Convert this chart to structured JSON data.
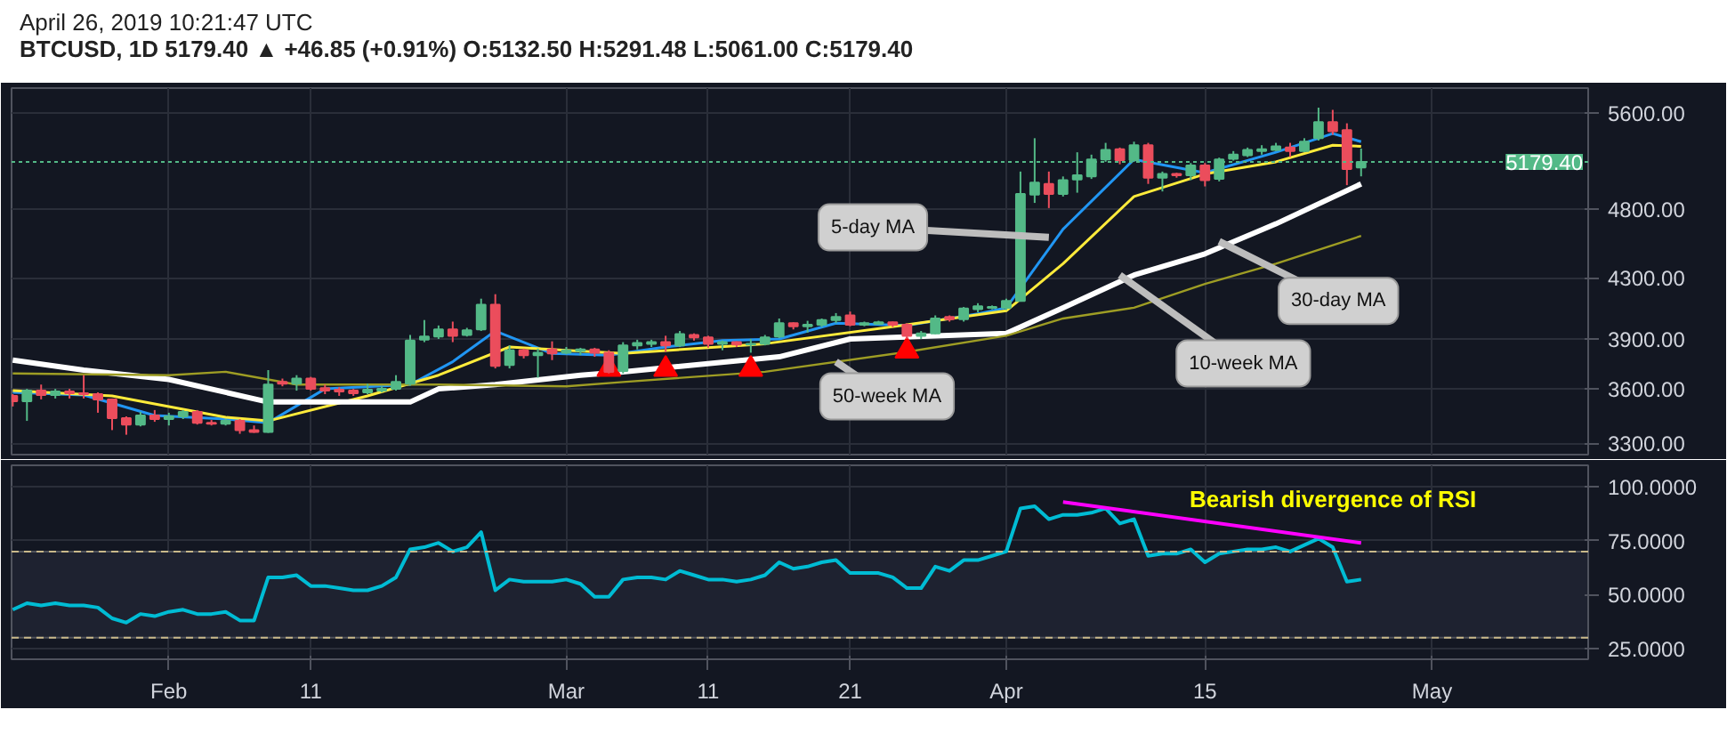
{
  "chart_data": [
    {
      "type": "candlestick",
      "title": "April 26, 2019 10:21:47 UTC",
      "subtitle": "BTCUSD, 1D 5179.40 ▲ +46.85 (+0.91%) O:5132.50 H:5291.48 L:5061.00 C:5179.40",
      "x": [
        "2019-01-21",
        "2019-01-22",
        "2019-01-23",
        "2019-01-24",
        "2019-01-25",
        "2019-01-26",
        "2019-01-27",
        "2019-01-28",
        "2019-01-29",
        "2019-01-30",
        "2019-01-31",
        "2019-02-01",
        "2019-02-02",
        "2019-02-03",
        "2019-02-04",
        "2019-02-05",
        "2019-02-06",
        "2019-02-07",
        "2019-02-08",
        "2019-02-09",
        "2019-02-10",
        "2019-02-11",
        "2019-02-12",
        "2019-02-13",
        "2019-02-14",
        "2019-02-15",
        "2019-02-16",
        "2019-02-17",
        "2019-02-18",
        "2019-02-19",
        "2019-02-20",
        "2019-02-21",
        "2019-02-22",
        "2019-02-23",
        "2019-02-24",
        "2019-02-25",
        "2019-02-26",
        "2019-02-27",
        "2019-02-28",
        "2019-03-01",
        "2019-03-02",
        "2019-03-03",
        "2019-03-04",
        "2019-03-05",
        "2019-03-06",
        "2019-03-07",
        "2019-03-08",
        "2019-03-09",
        "2019-03-10",
        "2019-03-11",
        "2019-03-12",
        "2019-03-13",
        "2019-03-14",
        "2019-03-15",
        "2019-03-16",
        "2019-03-17",
        "2019-03-18",
        "2019-03-19",
        "2019-03-20",
        "2019-03-21",
        "2019-03-22",
        "2019-03-23",
        "2019-03-24",
        "2019-03-25",
        "2019-03-26",
        "2019-03-27",
        "2019-03-28",
        "2019-03-29",
        "2019-03-30",
        "2019-03-31",
        "2019-04-01",
        "2019-04-02",
        "2019-04-03",
        "2019-04-04",
        "2019-04-05",
        "2019-04-06",
        "2019-04-07",
        "2019-04-08",
        "2019-04-09",
        "2019-04-10",
        "2019-04-11",
        "2019-04-12",
        "2019-04-13",
        "2019-04-14",
        "2019-04-15",
        "2019-04-16",
        "2019-04-17",
        "2019-04-18",
        "2019-04-19",
        "2019-04-20",
        "2019-04-21",
        "2019-04-22",
        "2019-04-23",
        "2019-04-24",
        "2019-04-25",
        "2019-04-26"
      ],
      "ohlc": [
        [
          3560,
          3570,
          3500,
          3530
        ],
        [
          3530,
          3600,
          3420,
          3590
        ],
        [
          3590,
          3625,
          3540,
          3565
        ],
        [
          3565,
          3600,
          3545,
          3585
        ],
        [
          3585,
          3600,
          3545,
          3575
        ],
        [
          3575,
          3680,
          3545,
          3570
        ],
        [
          3570,
          3580,
          3465,
          3540
        ],
        [
          3540,
          3545,
          3370,
          3435
        ],
        [
          3435,
          3445,
          3345,
          3400
        ],
        [
          3400,
          3470,
          3390,
          3450
        ],
        [
          3450,
          3480,
          3415,
          3430
        ],
        [
          3430,
          3465,
          3395,
          3445
        ],
        [
          3445,
          3480,
          3430,
          3470
        ],
        [
          3470,
          3480,
          3400,
          3410
        ],
        [
          3410,
          3425,
          3395,
          3405
        ],
        [
          3405,
          3430,
          3395,
          3420
        ],
        [
          3420,
          3430,
          3350,
          3370
        ],
        [
          3370,
          3395,
          3355,
          3360
        ],
        [
          3360,
          3710,
          3355,
          3625
        ],
        [
          3640,
          3660,
          3615,
          3630
        ],
        [
          3630,
          3680,
          3590,
          3660
        ],
        [
          3660,
          3670,
          3590,
          3600
        ],
        [
          3605,
          3625,
          3570,
          3590
        ],
        [
          3595,
          3610,
          3560,
          3585
        ],
        [
          3590,
          3600,
          3560,
          3575
        ],
        [
          3580,
          3630,
          3570,
          3595
        ],
        [
          3590,
          3615,
          3580,
          3600
        ],
        [
          3600,
          3680,
          3590,
          3640
        ],
        [
          3630,
          3925,
          3620,
          3890
        ],
        [
          3895,
          4020,
          3880,
          3915
        ],
        [
          3915,
          3985,
          3900,
          3960
        ],
        [
          3960,
          4010,
          3880,
          3920
        ],
        [
          3925,
          3970,
          3915,
          3955
        ],
        [
          3960,
          4160,
          3950,
          4120
        ],
        [
          4120,
          4190,
          3720,
          3735
        ],
        [
          3740,
          3860,
          3720,
          3830
        ],
        [
          3830,
          3840,
          3780,
          3800
        ],
        [
          3800,
          3840,
          3665,
          3815
        ],
        [
          3835,
          3885,
          3770,
          3810
        ],
        [
          3815,
          3850,
          3805,
          3830
        ],
        [
          3825,
          3845,
          3800,
          3835
        ],
        [
          3835,
          3845,
          3790,
          3815
        ],
        [
          3815,
          3830,
          3690,
          3700
        ],
        [
          3705,
          3880,
          3690,
          3860
        ],
        [
          3860,
          3895,
          3835,
          3875
        ],
        [
          3870,
          3895,
          3850,
          3880
        ],
        [
          3880,
          3920,
          3820,
          3860
        ],
        [
          3860,
          3950,
          3850,
          3930
        ],
        [
          3925,
          3935,
          3890,
          3910
        ],
        [
          3910,
          3920,
          3845,
          3870
        ],
        [
          3870,
          3890,
          3830,
          3880
        ],
        [
          3880,
          3885,
          3850,
          3865
        ],
        [
          3865,
          3900,
          3815,
          3870
        ],
        [
          3870,
          3925,
          3860,
          3910
        ],
        [
          3915,
          4030,
          3905,
          4000
        ],
        [
          4000,
          4005,
          3960,
          3980
        ],
        [
          3980,
          4015,
          3940,
          3990
        ],
        [
          3990,
          4030,
          3975,
          4020
        ],
        [
          4020,
          4065,
          4000,
          4040
        ],
        [
          4050,
          4075,
          3980,
          3990
        ],
        [
          3990,
          4010,
          3980,
          4000
        ],
        [
          3995,
          4015,
          3990,
          4005
        ],
        [
          4005,
          4010,
          3975,
          3990
        ],
        [
          3990,
          4000,
          3900,
          3920
        ],
        [
          3920,
          3950,
          3900,
          3935
        ],
        [
          3935,
          4050,
          3930,
          4030
        ],
        [
          4040,
          4050,
          4010,
          4025
        ],
        [
          4025,
          4105,
          4010,
          4095
        ],
        [
          4090,
          4130,
          4070,
          4110
        ],
        [
          4100,
          4115,
          4090,
          4105
        ],
        [
          4100,
          4160,
          4085,
          4145
        ],
        [
          4145,
          5100,
          4140,
          4920
        ],
        [
          4915,
          5380,
          4850,
          5010
        ],
        [
          5000,
          5100,
          4810,
          4920
        ],
        [
          4920,
          5060,
          4900,
          5030
        ],
        [
          5035,
          5260,
          4930,
          5070
        ],
        [
          5060,
          5240,
          5040,
          5200
        ],
        [
          5200,
          5340,
          5180,
          5280
        ],
        [
          5285,
          5300,
          5160,
          5195
        ],
        [
          5195,
          5350,
          5180,
          5320
        ],
        [
          5320,
          5340,
          5000,
          5050
        ],
        [
          5050,
          5100,
          4940,
          5080
        ],
        [
          5080,
          5090,
          5050,
          5070
        ],
        [
          5070,
          5170,
          5030,
          5150
        ],
        [
          5150,
          5170,
          4980,
          5030
        ],
        [
          5040,
          5215,
          5020,
          5200
        ],
        [
          5205,
          5270,
          5190,
          5240
        ],
        [
          5235,
          5300,
          5220,
          5280
        ],
        [
          5270,
          5320,
          5240,
          5285
        ],
        [
          5280,
          5340,
          5270,
          5310
        ],
        [
          5300,
          5340,
          5220,
          5270
        ],
        [
          5270,
          5380,
          5260,
          5350
        ],
        [
          5380,
          5650,
          5360,
          5520
        ],
        [
          5520,
          5630,
          5410,
          5440
        ],
        [
          5450,
          5510,
          4990,
          5120
        ],
        [
          5132.5,
          5291.48,
          5061,
          5179.4
        ]
      ],
      "series": [
        {
          "type": "line",
          "color": "#2196f3",
          "x": [
            "2019-01-21",
            "2019-01-26",
            "2019-01-31",
            "2019-02-05",
            "2019-02-08",
            "2019-02-12",
            "2019-02-18",
            "2019-02-21",
            "2019-02-24",
            "2019-02-28",
            "2019-03-04",
            "2019-03-08",
            "2019-03-12",
            "2019-03-16",
            "2019-03-20",
            "2019-03-25",
            "2019-03-30",
            "2019-04-01",
            "2019-04-05",
            "2019-04-10",
            "2019-04-15",
            "2019-04-20",
            "2019-04-24",
            "2019-04-26"
          ],
          "values": [
            3580,
            3565,
            3450,
            3430,
            3410,
            3600,
            3625,
            3760,
            3950,
            3810,
            3800,
            3850,
            3890,
            3900,
            4000,
            3985,
            4060,
            4100,
            4650,
            5200,
            5090,
            5260,
            5420,
            5350
          ]
        },
        {
          "type": "line",
          "color": "#ffeb3b",
          "x": [
            "2019-01-21",
            "2019-01-28",
            "2019-02-05",
            "2019-02-08",
            "2019-02-15",
            "2019-02-20",
            "2019-02-25",
            "2019-03-01",
            "2019-03-05",
            "2019-03-15",
            "2019-03-25",
            "2019-04-01",
            "2019-04-05",
            "2019-04-10",
            "2019-04-15",
            "2019-04-20",
            "2019-04-24",
            "2019-04-26"
          ],
          "values": [
            3590,
            3560,
            3440,
            3420,
            3560,
            3680,
            3850,
            3830,
            3810,
            3870,
            3990,
            4080,
            4400,
            4900,
            5080,
            5180,
            5320,
            5310
          ]
        },
        {
          "type": "line",
          "color": "#ffffff",
          "x": [
            "2019-01-21",
            "2019-01-26",
            "2019-02-01",
            "2019-02-08",
            "2019-02-18",
            "2019-02-20",
            "2019-02-24",
            "2019-03-02",
            "2019-03-05",
            "2019-03-16",
            "2019-03-21",
            "2019-04-01",
            "2019-04-05",
            "2019-04-10",
            "2019-04-15",
            "2019-04-20",
            "2019-04-26"
          ],
          "values": [
            3770,
            3710,
            3655,
            3525,
            3525,
            3600,
            3625,
            3680,
            3700,
            3790,
            3900,
            3935,
            4100,
            4320,
            4470,
            4690,
            5000
          ]
        },
        {
          "type": "line",
          "color": "#9e9d24",
          "x": [
            "2019-01-21",
            "2019-02-01",
            "2019-02-05",
            "2019-02-10",
            "2019-02-20",
            "2019-03-01",
            "2019-03-05",
            "2019-03-15",
            "2019-03-25",
            "2019-04-01",
            "2019-04-05",
            "2019-04-10",
            "2019-04-15",
            "2019-04-20",
            "2019-04-26"
          ],
          "values": [
            3690,
            3680,
            3700,
            3625,
            3625,
            3615,
            3640,
            3700,
            3820,
            3920,
            4030,
            4100,
            4260,
            4400,
            4600
          ]
        },
        {
          "type": "scatter",
          "color": "#ff0000",
          "marker": "triangle",
          "x": [
            "2019-03-04",
            "2019-03-08",
            "2019-03-14",
            "2019-03-25"
          ],
          "values": [
            3715,
            3715,
            3715,
            3825
          ]
        }
      ],
      "xlim": [
        "2019-01-20T22:00",
        "2019-05-12"
      ],
      "xticks": [
        {
          "value": "2019-02-01",
          "label": null
        },
        {
          "value": "2019-02-11",
          "label": null
        },
        {
          "value": "2019-03-01",
          "label": null
        },
        {
          "value": "2019-03-11",
          "label": null
        },
        {
          "value": "2019-03-21",
          "label": null
        },
        {
          "value": "2019-04-01",
          "label": null
        },
        {
          "value": "2019-04-15",
          "label": null
        },
        {
          "value": "2019-05-01",
          "label": null
        }
      ],
      "ylim": [
        3240,
        5830
      ],
      "log": "y",
      "yticks": [
        {
          "value": 3300,
          "label": "3300.00"
        },
        {
          "value": 3600,
          "label": "3600.00"
        },
        {
          "value": 3900,
          "label": "3900.00"
        },
        {
          "value": 4300,
          "label": "4300.00"
        },
        {
          "value": 4800,
          "label": "4800.00"
        },
        {
          "value": 5600,
          "label": "5600.00"
        }
      ],
      "ref_lines": [
        {
          "axis": "y",
          "value": 5179.4,
          "label": "5179.40",
          "color": "#53b987",
          "line_style": "dotted"
        }
      ],
      "annotations": [
        {
          "text": "5-day MA",
          "x": "2019-04-04",
          "y": 4590
        },
        {
          "text": "50-week MA",
          "x": "2019-03-20",
          "y": 3760
        },
        {
          "text": "10-week MA",
          "x": "2019-04-09",
          "y": 4320
        },
        {
          "text": "30-day MA",
          "x": "2019-04-16",
          "y": 4560
        }
      ],
      "grid": true,
      "tick_labels": "y"
    },
    {
      "type": "line",
      "x": [
        "2019-01-21",
        "2019-01-22",
        "2019-01-23",
        "2019-01-24",
        "2019-01-25",
        "2019-01-26",
        "2019-01-27",
        "2019-01-28",
        "2019-01-29",
        "2019-01-30",
        "2019-01-31",
        "2019-02-01",
        "2019-02-02",
        "2019-02-03",
        "2019-02-04",
        "2019-02-05",
        "2019-02-06",
        "2019-02-07",
        "2019-02-08",
        "2019-02-09",
        "2019-02-10",
        "2019-02-11",
        "2019-02-12",
        "2019-02-13",
        "2019-02-14",
        "2019-02-15",
        "2019-02-16",
        "2019-02-17",
        "2019-02-18",
        "2019-02-19",
        "2019-02-20",
        "2019-02-21",
        "2019-02-22",
        "2019-02-23",
        "2019-02-24",
        "2019-02-25",
        "2019-02-26",
        "2019-02-27",
        "2019-02-28",
        "2019-03-01",
        "2019-03-02",
        "2019-03-03",
        "2019-03-04",
        "2019-03-05",
        "2019-03-06",
        "2019-03-07",
        "2019-03-08",
        "2019-03-09",
        "2019-03-10",
        "2019-03-11",
        "2019-03-12",
        "2019-03-13",
        "2019-03-14",
        "2019-03-15",
        "2019-03-16",
        "2019-03-17",
        "2019-03-18",
        "2019-03-19",
        "2019-03-20",
        "2019-03-21",
        "2019-03-22",
        "2019-03-23",
        "2019-03-24",
        "2019-03-25",
        "2019-03-26",
        "2019-03-27",
        "2019-03-28",
        "2019-03-29",
        "2019-03-30",
        "2019-03-31",
        "2019-04-01",
        "2019-04-02",
        "2019-04-03",
        "2019-04-04",
        "2019-04-05",
        "2019-04-06",
        "2019-04-07",
        "2019-04-08",
        "2019-04-09",
        "2019-04-10",
        "2019-04-11",
        "2019-04-12",
        "2019-04-13",
        "2019-04-14",
        "2019-04-15",
        "2019-04-16",
        "2019-04-17",
        "2019-04-18",
        "2019-04-19",
        "2019-04-20",
        "2019-04-21",
        "2019-04-22",
        "2019-04-23",
        "2019-04-24",
        "2019-04-25",
        "2019-04-26"
      ],
      "series": [
        {
          "color": "#00bcd4",
          "values": [
            43,
            46,
            45,
            46,
            45,
            45,
            44,
            39,
            37,
            41,
            40,
            42,
            43,
            41,
            41,
            42,
            38,
            38,
            58,
            58,
            59,
            54,
            54,
            53,
            52,
            52,
            54,
            58,
            71,
            72,
            74,
            70,
            72,
            79,
            52,
            57,
            56,
            56,
            56,
            57,
            55,
            49,
            49,
            57,
            58,
            58,
            57,
            61,
            59,
            57,
            57,
            56,
            57,
            59,
            65,
            62,
            63,
            65,
            66,
            60,
            60,
            60,
            58,
            53,
            53,
            63,
            61,
            66,
            66,
            68,
            70,
            90,
            91,
            85,
            87,
            87,
            88,
            90,
            83,
            85,
            68,
            69,
            69,
            71,
            65,
            69,
            70,
            71,
            71,
            72,
            70,
            73,
            76,
            72,
            56,
            57
          ]
        },
        {
          "color": "#ff00ff",
          "x": [
            "2019-04-05",
            "2019-04-26"
          ],
          "values": [
            93,
            74
          ]
        }
      ],
      "xlim": [
        "2019-01-20T22:00",
        "2019-05-12"
      ],
      "xticks": [
        {
          "value": "2019-02-01",
          "label": "Feb"
        },
        {
          "value": "2019-02-11",
          "label": "11"
        },
        {
          "value": "2019-03-01",
          "label": "Mar"
        },
        {
          "value": "2019-03-11",
          "label": "11"
        },
        {
          "value": "2019-03-21",
          "label": "21"
        },
        {
          "value": "2019-04-01",
          "label": "Apr"
        },
        {
          "value": "2019-04-15",
          "label": "15"
        },
        {
          "value": "2019-05-01",
          "label": "May"
        }
      ],
      "ylim": [
        20,
        110
      ],
      "yticks": [
        {
          "value": 25,
          "label": "25.0000"
        },
        {
          "value": 50,
          "label": "50.0000"
        },
        {
          "value": 75,
          "label": "75.0000"
        },
        {
          "value": 100,
          "label": "100.0000"
        }
      ],
      "ref_lines": [
        {
          "axis": "y",
          "value": 70,
          "color": "#c9b98a",
          "line_style": "dashed"
        },
        {
          "axis": "y",
          "value": 30,
          "color": "#c9b98a",
          "line_style": "dashed"
        }
      ],
      "bands": [
        {
          "axis": "y",
          "from": 30,
          "to": 70,
          "color": "#1e2230"
        }
      ],
      "annotations": [
        "Bearish divergence of RSI"
      ],
      "grid": true
    }
  ]
}
